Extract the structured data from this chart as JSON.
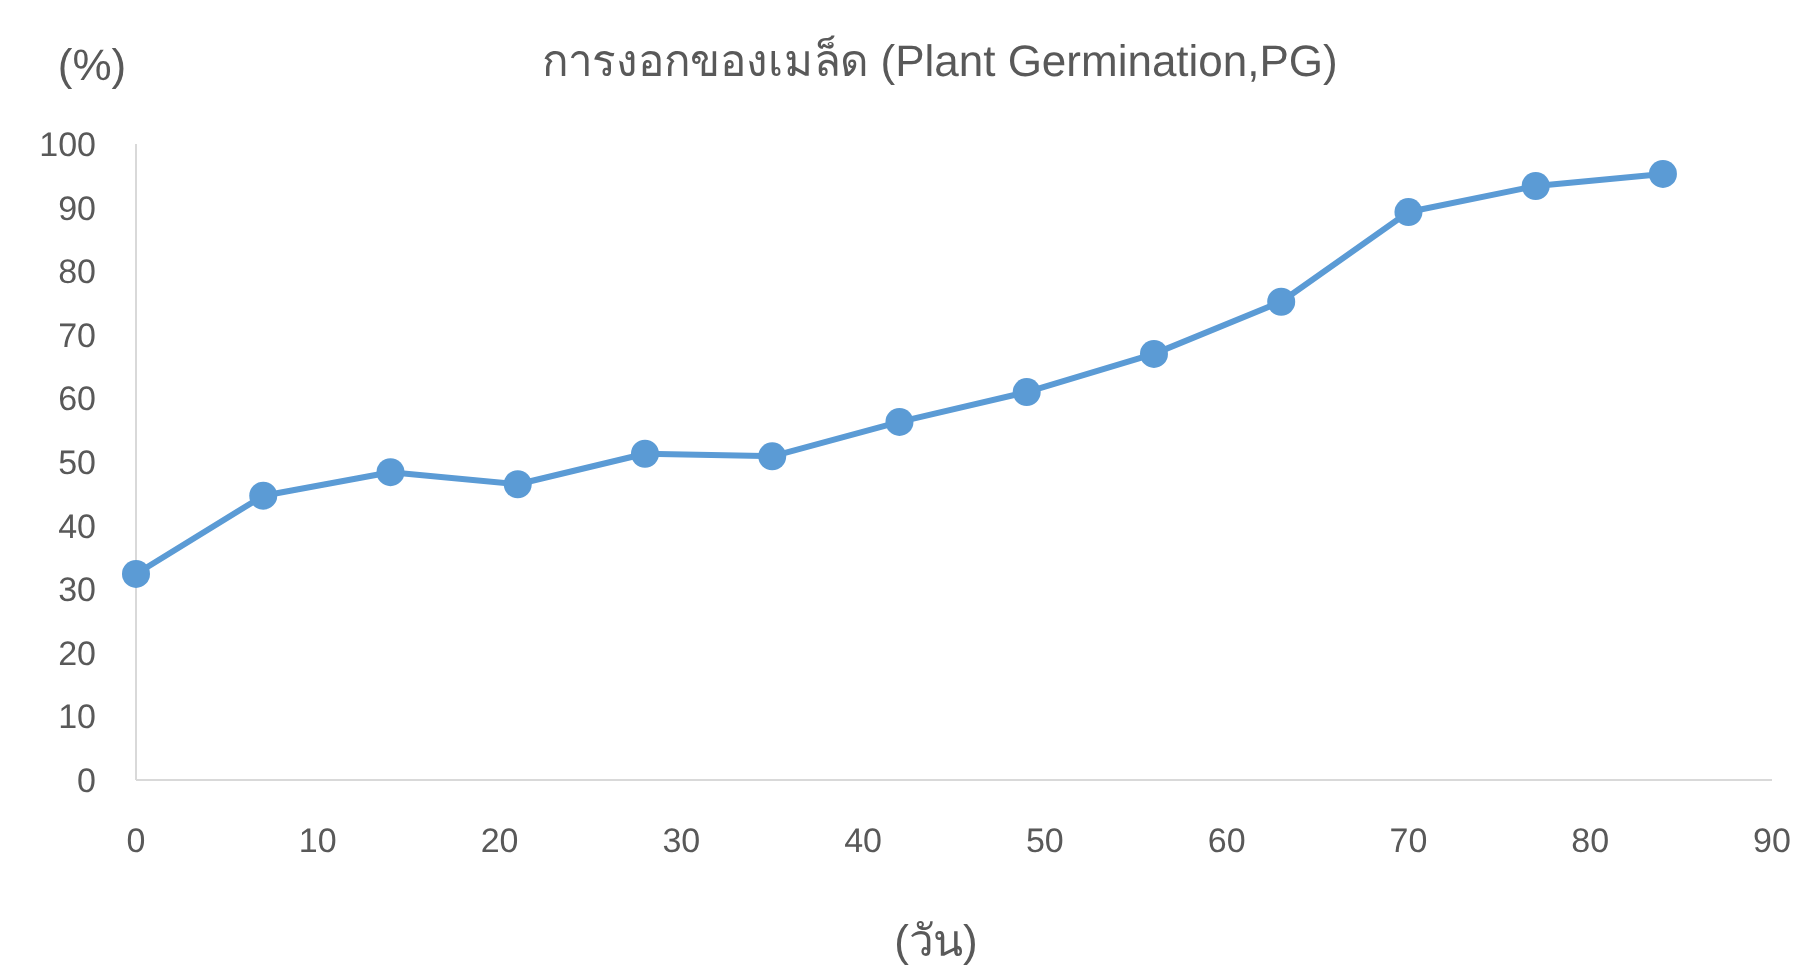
{
  "chart_data": {
    "type": "line",
    "title": "การงอกของเมล็ด (Plant Germination,PG)",
    "xlabel": "(วัน)",
    "ylabel": "(%)",
    "x": [
      0,
      7,
      14,
      21,
      28,
      35,
      42,
      49,
      56,
      63,
      70,
      77,
      84
    ],
    "series": [
      {
        "color": "#5b9bd5",
        "values": [
          32.4,
          44.7,
          48.4,
          46.5,
          51.3,
          50.9,
          56.3,
          61,
          67,
          75.2,
          89.3,
          93.4,
          95.3
        ]
      }
    ],
    "xlim": [
      0,
      90
    ],
    "xticks": [
      0,
      10,
      20,
      30,
      40,
      50,
      60,
      70,
      80,
      90
    ],
    "ylim": [
      0,
      100
    ],
    "yticks": [
      0,
      10,
      20,
      30,
      40,
      50,
      60,
      70,
      80,
      90,
      100
    ],
    "grid": false,
    "marker": "circle",
    "line_style": "solid"
  }
}
